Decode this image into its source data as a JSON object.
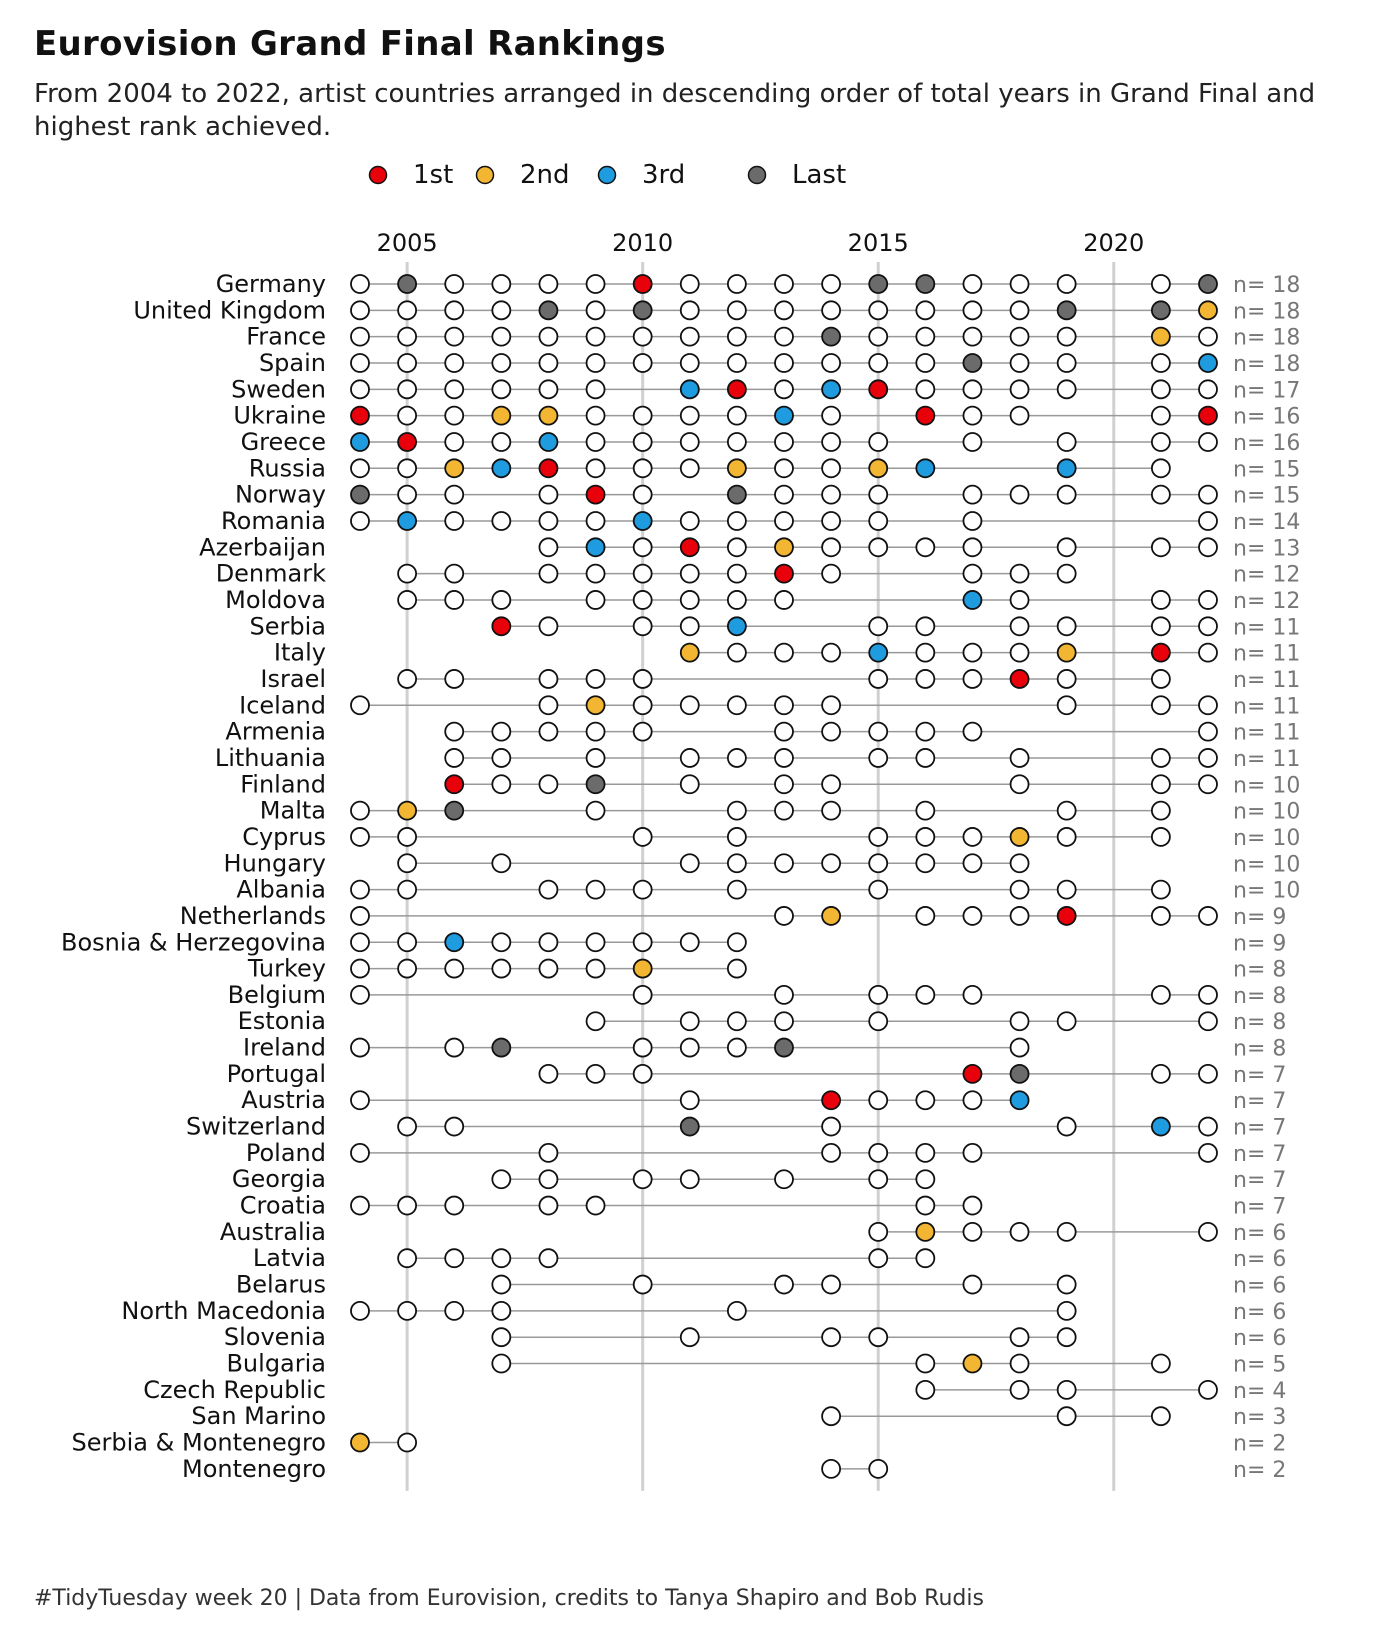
{
  "title": "Eurovision Grand Final Rankings",
  "subtitle": "From 2004 to 2022, artist countries arranged in descending order of total years in Grand Final and highest rank achieved.",
  "caption": "#TidyTuesday week 20 | Data from Eurovision, credits to Tanya Shapiro and Bob Rudis",
  "colors": {
    "1st": "#e8000b",
    "2nd": "#f2b632",
    "3rd": "#1f9be0",
    "Last": "#6b6b6b",
    "none": "#ffffff",
    "line": "#999999",
    "grid": "#d0d0d0",
    "count": "#777777"
  },
  "chart_data": {
    "type": "scatter",
    "x_ticks": [
      2005,
      2010,
      2015,
      2020
    ],
    "xlim": [
      2004,
      2022
    ],
    "legend": [
      {
        "key": "1st",
        "label": "1st"
      },
      {
        "key": "2nd",
        "label": "2nd"
      },
      {
        "key": "3rd",
        "label": "3rd"
      },
      {
        "key": "Last",
        "label": "Last"
      }
    ],
    "count_prefix": "n= ",
    "countries": [
      {
        "name": "Germany",
        "n": 18,
        "years": [
          2004,
          2005,
          2006,
          2007,
          2008,
          2009,
          2010,
          2011,
          2012,
          2013,
          2014,
          2015,
          2016,
          2017,
          2018,
          2019,
          2021,
          2022
        ],
        "marks": {
          "2005": "Last",
          "2010": "1st",
          "2015": "Last",
          "2016": "Last",
          "2022": "Last"
        }
      },
      {
        "name": "United Kingdom",
        "n": 18,
        "years": [
          2004,
          2005,
          2006,
          2007,
          2008,
          2009,
          2010,
          2011,
          2012,
          2013,
          2014,
          2015,
          2016,
          2017,
          2018,
          2019,
          2021,
          2022
        ],
        "marks": {
          "2008": "Last",
          "2010": "Last",
          "2019": "Last",
          "2021": "Last",
          "2022": "2nd"
        }
      },
      {
        "name": "France",
        "n": 18,
        "years": [
          2004,
          2005,
          2006,
          2007,
          2008,
          2009,
          2010,
          2011,
          2012,
          2013,
          2014,
          2015,
          2016,
          2017,
          2018,
          2019,
          2021,
          2022
        ],
        "marks": {
          "2014": "Last",
          "2021": "2nd"
        }
      },
      {
        "name": "Spain",
        "n": 18,
        "years": [
          2004,
          2005,
          2006,
          2007,
          2008,
          2009,
          2010,
          2011,
          2012,
          2013,
          2014,
          2015,
          2016,
          2017,
          2018,
          2019,
          2021,
          2022
        ],
        "marks": {
          "2017": "Last",
          "2022": "3rd"
        }
      },
      {
        "name": "Sweden",
        "n": 17,
        "years": [
          2004,
          2005,
          2006,
          2007,
          2008,
          2009,
          2011,
          2012,
          2013,
          2014,
          2015,
          2016,
          2017,
          2018,
          2019,
          2021,
          2022
        ],
        "marks": {
          "2011": "3rd",
          "2012": "1st",
          "2014": "3rd",
          "2015": "1st"
        }
      },
      {
        "name": "Ukraine",
        "n": 16,
        "years": [
          2004,
          2005,
          2006,
          2007,
          2008,
          2009,
          2010,
          2011,
          2012,
          2013,
          2014,
          2016,
          2017,
          2018,
          2021,
          2022
        ],
        "marks": {
          "2004": "1st",
          "2007": "2nd",
          "2008": "2nd",
          "2013": "3rd",
          "2016": "1st",
          "2022": "1st"
        }
      },
      {
        "name": "Greece",
        "n": 16,
        "years": [
          2004,
          2005,
          2006,
          2007,
          2008,
          2009,
          2010,
          2011,
          2012,
          2013,
          2014,
          2015,
          2017,
          2019,
          2021,
          2022
        ],
        "marks": {
          "2004": "3rd",
          "2005": "1st",
          "2008": "3rd"
        }
      },
      {
        "name": "Russia",
        "n": 15,
        "years": [
          2004,
          2005,
          2006,
          2007,
          2008,
          2009,
          2010,
          2011,
          2012,
          2013,
          2014,
          2015,
          2016,
          2019,
          2021
        ],
        "marks": {
          "2006": "2nd",
          "2007": "3rd",
          "2008": "1st",
          "2012": "2nd",
          "2015": "2nd",
          "2016": "3rd",
          "2019": "3rd"
        }
      },
      {
        "name": "Norway",
        "n": 15,
        "years": [
          2004,
          2005,
          2006,
          2008,
          2009,
          2010,
          2012,
          2013,
          2014,
          2015,
          2017,
          2018,
          2019,
          2021,
          2022
        ],
        "marks": {
          "2004": "Last",
          "2009": "1st",
          "2012": "Last"
        }
      },
      {
        "name": "Romania",
        "n": 14,
        "years": [
          2004,
          2005,
          2006,
          2007,
          2008,
          2009,
          2010,
          2011,
          2012,
          2013,
          2014,
          2015,
          2017,
          2022
        ],
        "marks": {
          "2005": "3rd",
          "2010": "3rd"
        }
      },
      {
        "name": "Azerbaijan",
        "n": 13,
        "years": [
          2008,
          2009,
          2010,
          2011,
          2012,
          2013,
          2014,
          2015,
          2016,
          2017,
          2019,
          2021,
          2022
        ],
        "marks": {
          "2009": "3rd",
          "2011": "1st",
          "2013": "2nd"
        }
      },
      {
        "name": "Denmark",
        "n": 12,
        "years": [
          2005,
          2006,
          2008,
          2009,
          2010,
          2011,
          2012,
          2013,
          2014,
          2017,
          2018,
          2019
        ],
        "marks": {
          "2013": "1st"
        }
      },
      {
        "name": "Moldova",
        "n": 12,
        "years": [
          2005,
          2006,
          2007,
          2009,
          2010,
          2011,
          2012,
          2013,
          2017,
          2018,
          2021,
          2022
        ],
        "marks": {
          "2017": "3rd"
        }
      },
      {
        "name": "Serbia",
        "n": 11,
        "years": [
          2007,
          2008,
          2010,
          2011,
          2012,
          2015,
          2016,
          2018,
          2019,
          2021,
          2022
        ],
        "marks": {
          "2007": "1st",
          "2012": "3rd"
        }
      },
      {
        "name": "Italy",
        "n": 11,
        "years": [
          2011,
          2012,
          2013,
          2014,
          2015,
          2016,
          2017,
          2018,
          2019,
          2021,
          2022
        ],
        "marks": {
          "2011": "2nd",
          "2015": "3rd",
          "2019": "2nd",
          "2021": "1st"
        }
      },
      {
        "name": "Israel",
        "n": 11,
        "years": [
          2005,
          2006,
          2008,
          2009,
          2010,
          2015,
          2016,
          2017,
          2018,
          2019,
          2021
        ],
        "marks": {
          "2018": "1st"
        }
      },
      {
        "name": "Iceland",
        "n": 11,
        "years": [
          2004,
          2008,
          2009,
          2010,
          2011,
          2012,
          2013,
          2014,
          2019,
          2021,
          2022
        ],
        "marks": {
          "2009": "2nd"
        }
      },
      {
        "name": "Armenia",
        "n": 11,
        "years": [
          2006,
          2007,
          2008,
          2009,
          2010,
          2013,
          2014,
          2015,
          2016,
          2017,
          2022
        ],
        "marks": {}
      },
      {
        "name": "Lithuania",
        "n": 11,
        "years": [
          2006,
          2007,
          2009,
          2011,
          2012,
          2013,
          2015,
          2016,
          2018,
          2021,
          2022
        ],
        "marks": {}
      },
      {
        "name": "Finland",
        "n": 10,
        "years": [
          2006,
          2007,
          2008,
          2009,
          2011,
          2013,
          2014,
          2018,
          2021,
          2022
        ],
        "marks": {
          "2006": "1st",
          "2009": "Last"
        }
      },
      {
        "name": "Malta",
        "n": 10,
        "years": [
          2004,
          2005,
          2006,
          2009,
          2012,
          2013,
          2014,
          2016,
          2019,
          2021
        ],
        "marks": {
          "2005": "2nd",
          "2006": "Last"
        }
      },
      {
        "name": "Cyprus",
        "n": 10,
        "years": [
          2004,
          2005,
          2010,
          2012,
          2015,
          2016,
          2017,
          2018,
          2019,
          2021
        ],
        "marks": {
          "2018": "2nd"
        }
      },
      {
        "name": "Hungary",
        "n": 10,
        "years": [
          2005,
          2007,
          2011,
          2012,
          2013,
          2014,
          2015,
          2016,
          2017,
          2018
        ],
        "marks": {}
      },
      {
        "name": "Albania",
        "n": 10,
        "years": [
          2004,
          2005,
          2008,
          2009,
          2010,
          2012,
          2015,
          2018,
          2019,
          2021
        ],
        "marks": {}
      },
      {
        "name": "Netherlands",
        "n": 9,
        "years": [
          2004,
          2013,
          2014,
          2016,
          2017,
          2018,
          2019,
          2021,
          2022
        ],
        "marks": {
          "2014": "2nd",
          "2019": "1st"
        }
      },
      {
        "name": "Bosnia & Herzegovina",
        "n": 9,
        "years": [
          2004,
          2005,
          2006,
          2007,
          2008,
          2009,
          2010,
          2011,
          2012
        ],
        "marks": {
          "2006": "3rd"
        }
      },
      {
        "name": "Turkey",
        "n": 8,
        "years": [
          2004,
          2005,
          2006,
          2007,
          2008,
          2009,
          2010,
          2012
        ],
        "marks": {
          "2010": "2nd"
        }
      },
      {
        "name": "Belgium",
        "n": 8,
        "years": [
          2004,
          2010,
          2013,
          2015,
          2016,
          2017,
          2021,
          2022
        ],
        "marks": {}
      },
      {
        "name": "Estonia",
        "n": 8,
        "years": [
          2009,
          2011,
          2012,
          2013,
          2015,
          2018,
          2019,
          2022
        ],
        "marks": {}
      },
      {
        "name": "Ireland",
        "n": 8,
        "years": [
          2004,
          2006,
          2007,
          2010,
          2011,
          2012,
          2013,
          2018
        ],
        "marks": {
          "2007": "Last",
          "2013": "Last"
        }
      },
      {
        "name": "Portugal",
        "n": 7,
        "years": [
          2008,
          2009,
          2010,
          2017,
          2018,
          2021,
          2022
        ],
        "marks": {
          "2017": "1st",
          "2018": "Last"
        }
      },
      {
        "name": "Austria",
        "n": 7,
        "years": [
          2004,
          2011,
          2014,
          2015,
          2016,
          2017,
          2018
        ],
        "marks": {
          "2014": "1st",
          "2018": "3rd"
        }
      },
      {
        "name": "Switzerland",
        "n": 7,
        "years": [
          2005,
          2006,
          2011,
          2014,
          2019,
          2021,
          2022
        ],
        "marks": {
          "2011": "Last",
          "2021": "3rd"
        }
      },
      {
        "name": "Poland",
        "n": 7,
        "years": [
          2004,
          2008,
          2014,
          2015,
          2016,
          2017,
          2022
        ],
        "marks": {}
      },
      {
        "name": "Georgia",
        "n": 7,
        "years": [
          2007,
          2008,
          2010,
          2011,
          2013,
          2015,
          2016
        ],
        "marks": {}
      },
      {
        "name": "Croatia",
        "n": 7,
        "years": [
          2004,
          2005,
          2006,
          2008,
          2009,
          2016,
          2017
        ],
        "marks": {}
      },
      {
        "name": "Australia",
        "n": 6,
        "years": [
          2015,
          2016,
          2017,
          2018,
          2019,
          2022
        ],
        "marks": {
          "2016": "2nd"
        }
      },
      {
        "name": "Latvia",
        "n": 6,
        "years": [
          2005,
          2006,
          2007,
          2008,
          2015,
          2016
        ],
        "marks": {}
      },
      {
        "name": "Belarus",
        "n": 6,
        "years": [
          2007,
          2010,
          2013,
          2014,
          2017,
          2019
        ],
        "marks": {}
      },
      {
        "name": "North Macedonia",
        "n": 6,
        "years": [
          2004,
          2005,
          2006,
          2007,
          2012,
          2019
        ],
        "marks": {}
      },
      {
        "name": "Slovenia",
        "n": 6,
        "years": [
          2007,
          2011,
          2014,
          2015,
          2018,
          2019
        ],
        "marks": {}
      },
      {
        "name": "Bulgaria",
        "n": 5,
        "years": [
          2007,
          2016,
          2017,
          2018,
          2021
        ],
        "marks": {
          "2017": "2nd"
        }
      },
      {
        "name": "Czech Republic",
        "n": 4,
        "years": [
          2016,
          2018,
          2019,
          2022
        ],
        "marks": {}
      },
      {
        "name": "San Marino",
        "n": 3,
        "years": [
          2014,
          2019,
          2021
        ],
        "marks": {}
      },
      {
        "name": "Serbia & Montenegro",
        "n": 2,
        "years": [
          2004,
          2005
        ],
        "marks": {
          "2004": "2nd"
        }
      },
      {
        "name": "Montenegro",
        "n": 2,
        "years": [
          2014,
          2015
        ],
        "marks": {}
      }
    ]
  }
}
